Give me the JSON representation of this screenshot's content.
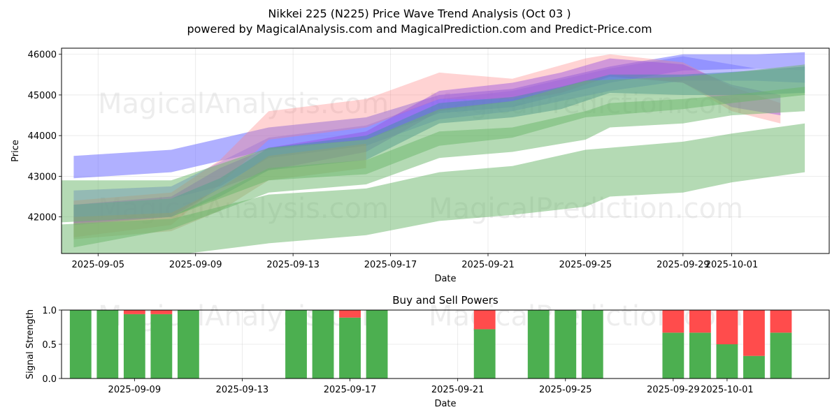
{
  "title_line1": "Nikkei 225 (N225) Price Wave Trend Analysis (Oct 03 )",
  "title_line2": "powered by MagicalAnalysis.com and MagicalPrediction.com and Predict-Price.com",
  "watermark": "MagicalAnalysis.com   MagicalPrediction.com",
  "chart_data": [
    {
      "type": "area",
      "title": "Nikkei 225 (N225) Price Wave Trend Analysis (Oct 03 )",
      "xlabel": "Date",
      "ylabel": "Price",
      "ylim": [
        41100,
        46150
      ],
      "xlim": [
        "2025-09-03 12:00",
        "2025-10-05"
      ],
      "grid": true,
      "x_tick_labels": [
        "2025-09-05",
        "2025-09-09",
        "2025-09-13",
        "2025-09-17",
        "2025-09-21",
        "2025-09-25",
        "2025-09-29",
        "2025-10-01"
      ],
      "x_tick_dates": [
        "2025-09-05",
        "2025-09-09",
        "2025-09-13",
        "2025-09-17",
        "2025-09-21",
        "2025-09-25",
        "2025-09-29",
        "2025-10-01"
      ],
      "y_ticks": [
        42000,
        43000,
        44000,
        45000,
        46000
      ],
      "series": [
        {
          "name": "blue band upper",
          "color": "#7070ff",
          "opacity": 0.55,
          "x": [
            "2025-09-04",
            "2025-09-08",
            "2025-09-12",
            "2025-09-16",
            "2025-09-19",
            "2025-09-22",
            "2025-09-26",
            "2025-09-29",
            "2025-10-02",
            "2025-10-04"
          ],
          "upper": [
            43500,
            43650,
            44200,
            44450,
            45000,
            45150,
            45700,
            46000,
            46000,
            46050
          ],
          "lower": [
            42950,
            43100,
            43650,
            43900,
            44550,
            44700,
            45300,
            45600,
            45650,
            45600
          ]
        },
        {
          "name": "blue band lower",
          "color": "#7070ff",
          "opacity": 0.45,
          "x": [
            "2025-09-04",
            "2025-09-08",
            "2025-09-10",
            "2025-09-12",
            "2025-09-16",
            "2025-09-19",
            "2025-09-22",
            "2025-09-26",
            "2025-09-29",
            "2025-10-02",
            "2025-10-04"
          ],
          "upper": [
            42650,
            42750,
            43350,
            43950,
            44250,
            44900,
            45100,
            45650,
            45950,
            45650,
            45600
          ],
          "lower": [
            42300,
            42450,
            42750,
            43450,
            43750,
            44400,
            44600,
            45100,
            45350,
            45350,
            45300
          ]
        },
        {
          "name": "red band",
          "color": "#ff8080",
          "opacity": 0.35,
          "x": [
            "2025-09-04",
            "2025-09-08",
            "2025-09-10",
            "2025-09-12",
            "2025-09-16",
            "2025-09-19",
            "2025-09-22",
            "2025-09-25",
            "2025-09-26",
            "2025-09-29",
            "2025-10-01",
            "2025-10-03"
          ],
          "upper": [
            42400,
            42600,
            43400,
            44600,
            44900,
            45550,
            45400,
            45900,
            46000,
            45800,
            45200,
            44800
          ],
          "lower": [
            41500,
            41800,
            42800,
            43900,
            44200,
            44900,
            44900,
            45300,
            45500,
            45300,
            44600,
            44300
          ]
        },
        {
          "name": "purple band",
          "color": "#9a50e0",
          "opacity": 0.45,
          "x": [
            "2025-09-04",
            "2025-09-08",
            "2025-09-10",
            "2025-09-12",
            "2025-09-16",
            "2025-09-19",
            "2025-09-22",
            "2025-09-24",
            "2025-09-26",
            "2025-09-29",
            "2025-10-01",
            "2025-10-03"
          ],
          "upper": [
            42300,
            42500,
            43200,
            43700,
            44100,
            45100,
            45300,
            45550,
            45900,
            45750,
            45250,
            45000
          ],
          "lower": [
            41800,
            42000,
            42700,
            43150,
            43600,
            44600,
            44850,
            45050,
            45450,
            45300,
            44700,
            44500
          ]
        },
        {
          "name": "teal band",
          "color": "#4a8ab0",
          "opacity": 0.55,
          "x": [
            "2025-09-04",
            "2025-09-08",
            "2025-09-10",
            "2025-09-12",
            "2025-09-16",
            "2025-09-19",
            "2025-09-22",
            "2025-09-24",
            "2025-09-26",
            "2025-09-29",
            "2025-10-02",
            "2025-10-04"
          ],
          "upper": [
            42300,
            42450,
            42950,
            43700,
            44000,
            44800,
            44950,
            45200,
            45500,
            45500,
            45600,
            45700
          ],
          "lower": [
            41850,
            42000,
            42500,
            43150,
            43400,
            44300,
            44450,
            44650,
            45050,
            45000,
            45000,
            45050
          ]
        },
        {
          "name": "orange band",
          "color": "#c89060",
          "opacity": 0.35,
          "x": [
            "2025-09-04",
            "2025-09-08",
            "2025-09-10",
            "2025-09-12",
            "2025-09-16"
          ],
          "upper": [
            42000,
            42100,
            42700,
            43500,
            43800
          ],
          "lower": [
            41450,
            41650,
            42150,
            42900,
            43200
          ]
        },
        {
          "name": "green band upper",
          "color": "#6ab56a",
          "opacity": 0.5,
          "x": [
            "2025-09-03",
            "2025-09-08",
            "2025-09-12",
            "2025-09-16",
            "2025-09-19",
            "2025-09-22",
            "2025-09-25",
            "2025-09-29",
            "2025-10-01",
            "2025-10-04"
          ],
          "upper": [
            42900,
            42900,
            43700,
            43900,
            44650,
            44850,
            45350,
            45450,
            45550,
            45750
          ],
          "lower": [
            41850,
            42000,
            42900,
            43050,
            43750,
            43950,
            44450,
            44650,
            44800,
            45000
          ]
        },
        {
          "name": "green band middle",
          "color": "#6ab56a",
          "opacity": 0.5,
          "x": [
            "2025-09-04",
            "2025-09-08",
            "2025-09-12",
            "2025-09-16",
            "2025-09-19",
            "2025-09-22",
            "2025-09-25",
            "2025-09-26",
            "2025-09-29",
            "2025-10-01",
            "2025-10-04"
          ],
          "upper": [
            41850,
            42000,
            43200,
            43400,
            44100,
            44200,
            44600,
            44800,
            44900,
            45000,
            45200
          ],
          "lower": [
            41250,
            41700,
            42600,
            42800,
            43450,
            43600,
            43900,
            44200,
            44300,
            44500,
            44600
          ]
        },
        {
          "name": "green band lower",
          "color": "#6ab56a",
          "opacity": 0.5,
          "x": [
            "2025-09-03",
            "2025-09-08",
            "2025-09-12",
            "2025-09-16",
            "2025-09-19",
            "2025-09-22",
            "2025-09-25",
            "2025-09-26",
            "2025-09-29",
            "2025-10-01",
            "2025-10-04"
          ],
          "upper": [
            41800,
            41950,
            42550,
            42700,
            43100,
            43250,
            43650,
            43700,
            43850,
            44050,
            44300
          ],
          "lower": [
            41050,
            41050,
            41350,
            41550,
            41900,
            42050,
            42250,
            42500,
            42600,
            42850,
            43100
          ]
        }
      ]
    },
    {
      "type": "bar",
      "title": "Buy and Sell Powers",
      "xlabel": "Date",
      "ylabel": "Signal Strength",
      "ylim": [
        0,
        1.0
      ],
      "grid": true,
      "x_tick_labels": [
        "2025-09-09",
        "2025-09-13",
        "2025-09-17",
        "2025-09-21",
        "2025-09-25",
        "2025-09-29",
        "2025-10-01"
      ],
      "x_tick_dates": [
        "2025-09-09",
        "2025-09-13",
        "2025-09-17",
        "2025-09-21",
        "2025-09-25",
        "2025-09-29",
        "2025-10-01"
      ],
      "y_tick_labels": [
        "0.0",
        "0.5",
        "1.0"
      ],
      "y_ticks": [
        0,
        0.5,
        1.0
      ],
      "categories": [
        "2025-09-07",
        "2025-09-08",
        "2025-09-09",
        "2025-09-10",
        "2025-09-11",
        "2025-09-15",
        "2025-09-16",
        "2025-09-17",
        "2025-09-18",
        "2025-09-22",
        "2025-09-24",
        "2025-09-25",
        "2025-09-26",
        "2025-09-29",
        "2025-09-30",
        "2025-10-01",
        "2025-10-02",
        "2025-10-03"
      ],
      "series": [
        {
          "name": "Buy",
          "color": "#4caf50",
          "values": [
            1.0,
            1.0,
            0.94,
            0.94,
            1.0,
            1.0,
            1.0,
            0.89,
            1.0,
            0.72,
            1.0,
            1.0,
            1.0,
            0.67,
            0.67,
            0.5,
            0.33,
            0.67
          ]
        },
        {
          "name": "Sell",
          "color": "#ff4c4c",
          "values": [
            0,
            0,
            0.06,
            0.06,
            0,
            0,
            0,
            0.11,
            0,
            0.28,
            0,
            0,
            0,
            0.33,
            0.33,
            0.5,
            0.67,
            0.33
          ]
        }
      ]
    }
  ]
}
